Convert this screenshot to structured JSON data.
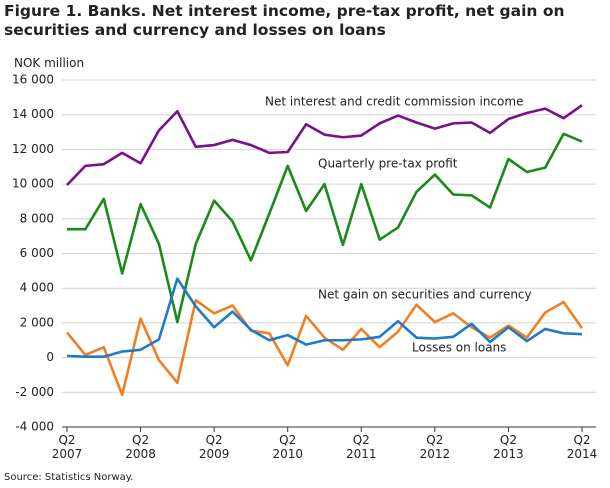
{
  "chart_data": {
    "type": "line",
    "title": "Figure 1. Banks. Net interest income, pre-tax profit, net gain on securities and currency and losses on loans",
    "y_label": "NOK million",
    "source": "Source: Statistics Norway.",
    "categories": [
      "Q2 2007",
      null,
      null,
      null,
      "Q2 2008",
      null,
      null,
      null,
      "Q2 2009",
      null,
      null,
      null,
      "Q2 2010",
      null,
      null,
      null,
      "Q2 2011",
      null,
      null,
      null,
      "Q2 2012",
      null,
      null,
      null,
      "Q2 2013",
      null,
      null,
      null,
      "Q2 2014"
    ],
    "series": [
      {
        "name": "Net interest and credit commission income",
        "color": "#7b0f8e",
        "values": [
          9950,
          11050,
          11150,
          11800,
          11200,
          13100,
          14200,
          12150,
          12250,
          12550,
          12250,
          11800,
          11850,
          13450,
          12850,
          12700,
          12800,
          13500,
          13950,
          13550,
          13200,
          13500,
          13550,
          12950,
          13750,
          14100,
          14350,
          13800,
          14550
        ]
      },
      {
        "name": "Quarterly pre-tax profit",
        "color": "#1a8a1a",
        "values": [
          7400,
          7400,
          9150,
          4850,
          8850,
          6550,
          2050,
          6550,
          9050,
          7850,
          5600,
          8300,
          11050,
          8450,
          10000,
          6500,
          10000,
          6800,
          7500,
          9550,
          10550,
          9400,
          9350,
          8650,
          11450,
          10700,
          10950,
          12900,
          12450
        ]
      },
      {
        "name": "Net gain on securities and currency",
        "color": "#f07f22",
        "values": [
          1450,
          150,
          600,
          -2150,
          2250,
          -150,
          -1450,
          3300,
          2550,
          3000,
          1550,
          1400,
          -450,
          2400,
          1150,
          450,
          1650,
          600,
          1500,
          3050,
          2050,
          2550,
          1750,
          1150,
          1850,
          1150,
          2600,
          3200,
          1700
        ]
      },
      {
        "name": "Losses on loans",
        "color": "#1f7ac8",
        "values": [
          100,
          50,
          50,
          350,
          450,
          1050,
          4550,
          2950,
          1750,
          2650,
          1600,
          1000,
          1300,
          750,
          1000,
          1000,
          1050,
          1200,
          2100,
          1150,
          1100,
          1200,
          1950,
          900,
          1750,
          950,
          1650,
          1400,
          1350
        ]
      }
    ],
    "ylim": [
      -4000,
      16000
    ],
    "yticks": [
      {
        "value": -4000,
        "label": "-4 000"
      },
      {
        "value": -2000,
        "label": "-2 000"
      },
      0,
      {
        "value": 2000,
        "label": "2 000"
      },
      {
        "value": 4000,
        "label": "4 000"
      },
      {
        "value": 6000,
        "label": "6 000"
      },
      {
        "value": 8000,
        "label": "8 000"
      },
      {
        "value": 10000,
        "label": "10 000"
      },
      {
        "value": 12000,
        "label": "12 000"
      },
      {
        "value": 14000,
        "label": "14 000"
      },
      {
        "value": 16000,
        "label": "16 000"
      }
    ],
    "grid": true
  }
}
